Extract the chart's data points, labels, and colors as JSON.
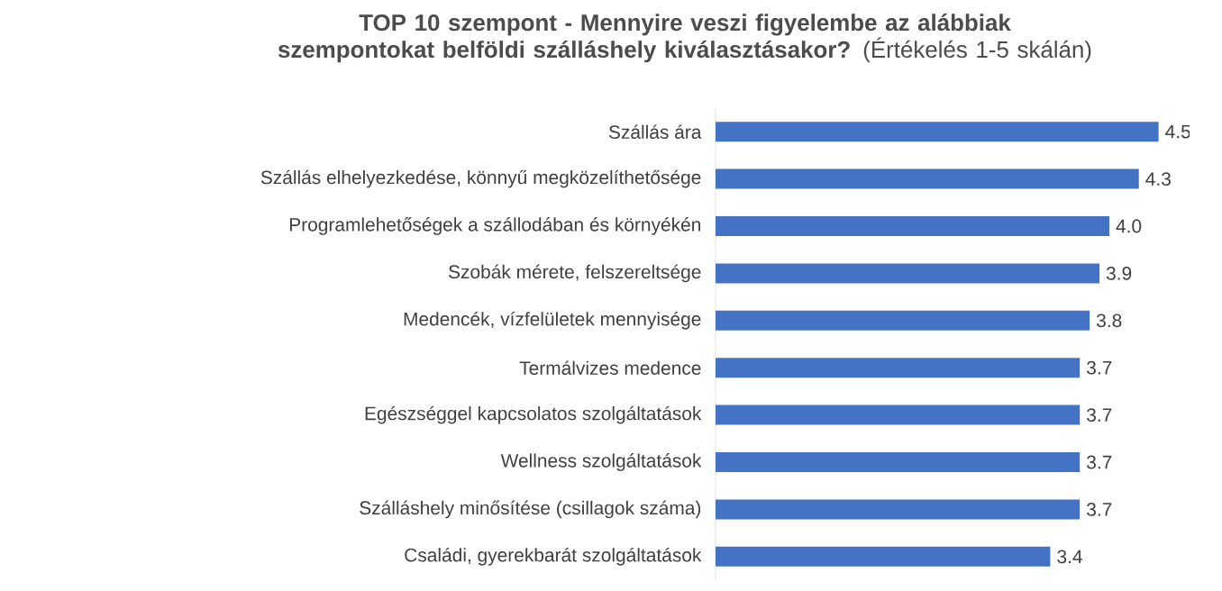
{
  "chart_data": {
    "type": "bar",
    "orientation": "horizontal",
    "title": "**TOP 10 szempont - Mennyire veszi figyelembe az alábbiak szempontokat belföldi szálláshely kiválasztásakor?** (Értékelés 1-5 skálán)",
    "categories": [
      "Szállás ára",
      "Szállás elhelyezkedése, könnyű megközelíthetősége",
      "Programlehetőségek a szállodában és környékén",
      "Szobák mérete, felszereltsége",
      "Medencék, vízfelületek mennyisége",
      "Termálvizes medence",
      "Egészséggel kapcsolatos szolgáltatások",
      "Wellness szolgáltatások",
      "Szálláshely minősítése (csillagok száma)",
      "Családi, gyerekbarát szolgáltatások"
    ],
    "values": [
      4.5,
      4.3,
      4.0,
      3.9,
      3.8,
      3.7,
      3.7,
      3.7,
      3.7,
      3.4
    ],
    "value_labels": [
      "4.5",
      "4.3",
      "4.0",
      "3.9",
      "3.8",
      "3.7",
      "3.7",
      "3.7",
      "3.7",
      "3.4"
    ],
    "color": "#4472c4"
  }
}
